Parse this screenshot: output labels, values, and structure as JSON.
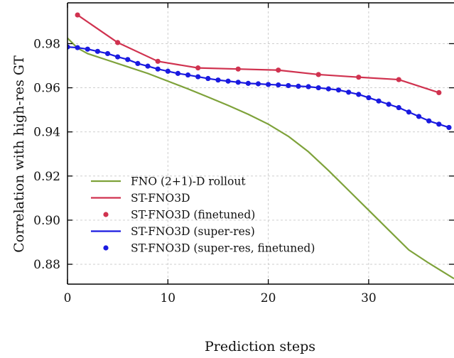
{
  "chart_data": {
    "type": "line",
    "xlabel": "Prediction steps",
    "ylabel": "Correlation with high-res GT",
    "xlim": [
      0,
      38.5
    ],
    "ylim": [
      0.871,
      0.9985
    ],
    "xticks": [
      0,
      10,
      20,
      30
    ],
    "xtick_labels": [
      "0",
      "10",
      "20",
      "30"
    ],
    "yticks": [
      0.88,
      0.9,
      0.92,
      0.94,
      0.96,
      0.98
    ],
    "ytick_labels": [
      "0.88",
      "0.90",
      "0.92",
      "0.94",
      "0.96",
      "0.98"
    ],
    "grid": true,
    "legend_position": "lower-left",
    "series": [
      {
        "name": "FNO (2+1)-D rollout",
        "style": "line",
        "color": "#7ea23a",
        "x": [
          0,
          1,
          2,
          4,
          6,
          8,
          10,
          12,
          14,
          16,
          18,
          20,
          22,
          24,
          26,
          28,
          30,
          32,
          34,
          36,
          38.5
        ],
        "y": [
          0.9825,
          0.978,
          0.9755,
          0.9725,
          0.9695,
          0.9665,
          0.963,
          0.9595,
          0.9558,
          0.952,
          0.948,
          0.9435,
          0.938,
          0.931,
          0.9225,
          0.9135,
          0.9045,
          0.8955,
          0.8865,
          0.8805,
          0.8735
        ]
      },
      {
        "name": "ST-FNO3D",
        "style": "line",
        "color": "#d0324f",
        "x": [
          1,
          5,
          9,
          13,
          17,
          21,
          25,
          29,
          33,
          37
        ],
        "y": [
          0.993,
          0.9805,
          0.972,
          0.969,
          0.9685,
          0.968,
          0.966,
          0.9648,
          0.9637,
          0.9578
        ]
      },
      {
        "name": "ST-FNO3D (finetuned)",
        "style": "markers",
        "color": "#d0324f",
        "x": [
          1,
          5,
          9,
          13,
          17,
          21,
          25,
          29,
          33,
          37
        ],
        "y": [
          0.993,
          0.9805,
          0.972,
          0.969,
          0.9685,
          0.968,
          0.966,
          0.9648,
          0.9637,
          0.9578
        ]
      },
      {
        "name": "ST-FNO3D (super-res)",
        "style": "line",
        "color": "#1a1ae0",
        "x": [
          0,
          1,
          2,
          3,
          4,
          5,
          6,
          7,
          8,
          9,
          10,
          11,
          12,
          13,
          14,
          15,
          16,
          17,
          18,
          19,
          20,
          21,
          22,
          23,
          24,
          25,
          26,
          27,
          28,
          29,
          30,
          31,
          32,
          33,
          34,
          35,
          36,
          37,
          38
        ],
        "y": [
          0.9785,
          0.9782,
          0.9775,
          0.9765,
          0.9755,
          0.974,
          0.9728,
          0.971,
          0.9698,
          0.9685,
          0.9675,
          0.9665,
          0.9658,
          0.965,
          0.9642,
          0.9635,
          0.963,
          0.9625,
          0.962,
          0.9618,
          0.9615,
          0.9613,
          0.961,
          0.9607,
          0.9605,
          0.96,
          0.9595,
          0.959,
          0.958,
          0.957,
          0.9555,
          0.954,
          0.9525,
          0.951,
          0.949,
          0.947,
          0.945,
          0.9435,
          0.942
        ]
      },
      {
        "name": "ST-FNO3D (super-res, finetuned)",
        "style": "markers",
        "color": "#1a1ae0",
        "x": [
          0,
          1,
          2,
          3,
          4,
          5,
          6,
          7,
          8,
          9,
          10,
          11,
          12,
          13,
          14,
          15,
          16,
          17,
          18,
          19,
          20,
          21,
          22,
          23,
          24,
          25,
          26,
          27,
          28,
          29,
          30,
          31,
          32,
          33,
          34,
          35,
          36,
          37,
          38
        ],
        "y": [
          0.9785,
          0.9782,
          0.9775,
          0.9765,
          0.9755,
          0.974,
          0.9728,
          0.971,
          0.9698,
          0.9685,
          0.9675,
          0.9665,
          0.9658,
          0.965,
          0.9642,
          0.9635,
          0.963,
          0.9625,
          0.962,
          0.9618,
          0.9615,
          0.9613,
          0.961,
          0.9607,
          0.9605,
          0.96,
          0.9595,
          0.959,
          0.958,
          0.957,
          0.9555,
          0.954,
          0.9525,
          0.951,
          0.949,
          0.947,
          0.945,
          0.9435,
          0.942
        ]
      }
    ]
  }
}
